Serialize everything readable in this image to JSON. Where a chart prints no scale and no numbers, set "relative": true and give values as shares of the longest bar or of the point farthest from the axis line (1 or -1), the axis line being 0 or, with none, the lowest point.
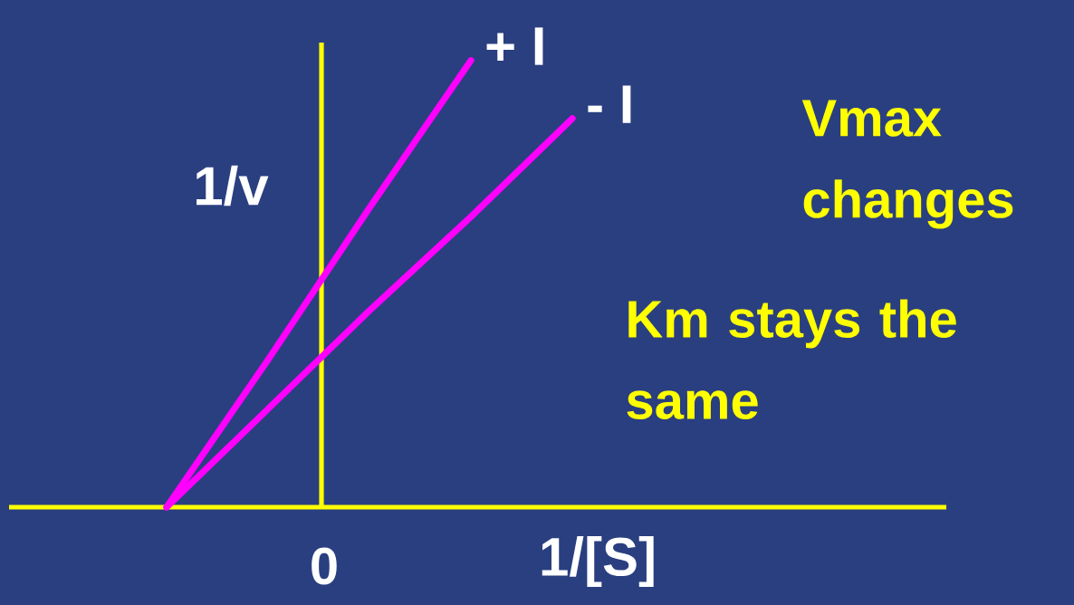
{
  "chart_data": {
    "type": "line",
    "relative": true,
    "xlabel": "1/[S]",
    "ylabel": "1/v",
    "categories": [
      null,
      null,
      null,
      null,
      null
    ],
    "series": [
      {
        "name": "+ I",
        "color": "#ff00ff",
        "values": [
          0,
          0.33,
          0.67,
          1,
          null
        ]
      },
      {
        "name": "- I",
        "color": "#ff00ff",
        "values": [
          0,
          0.22,
          0.44,
          0.65,
          0.87
        ]
      }
    ],
    "annotations": [
      "Vmax changes",
      "Km stays the same",
      "0"
    ]
  }
}
